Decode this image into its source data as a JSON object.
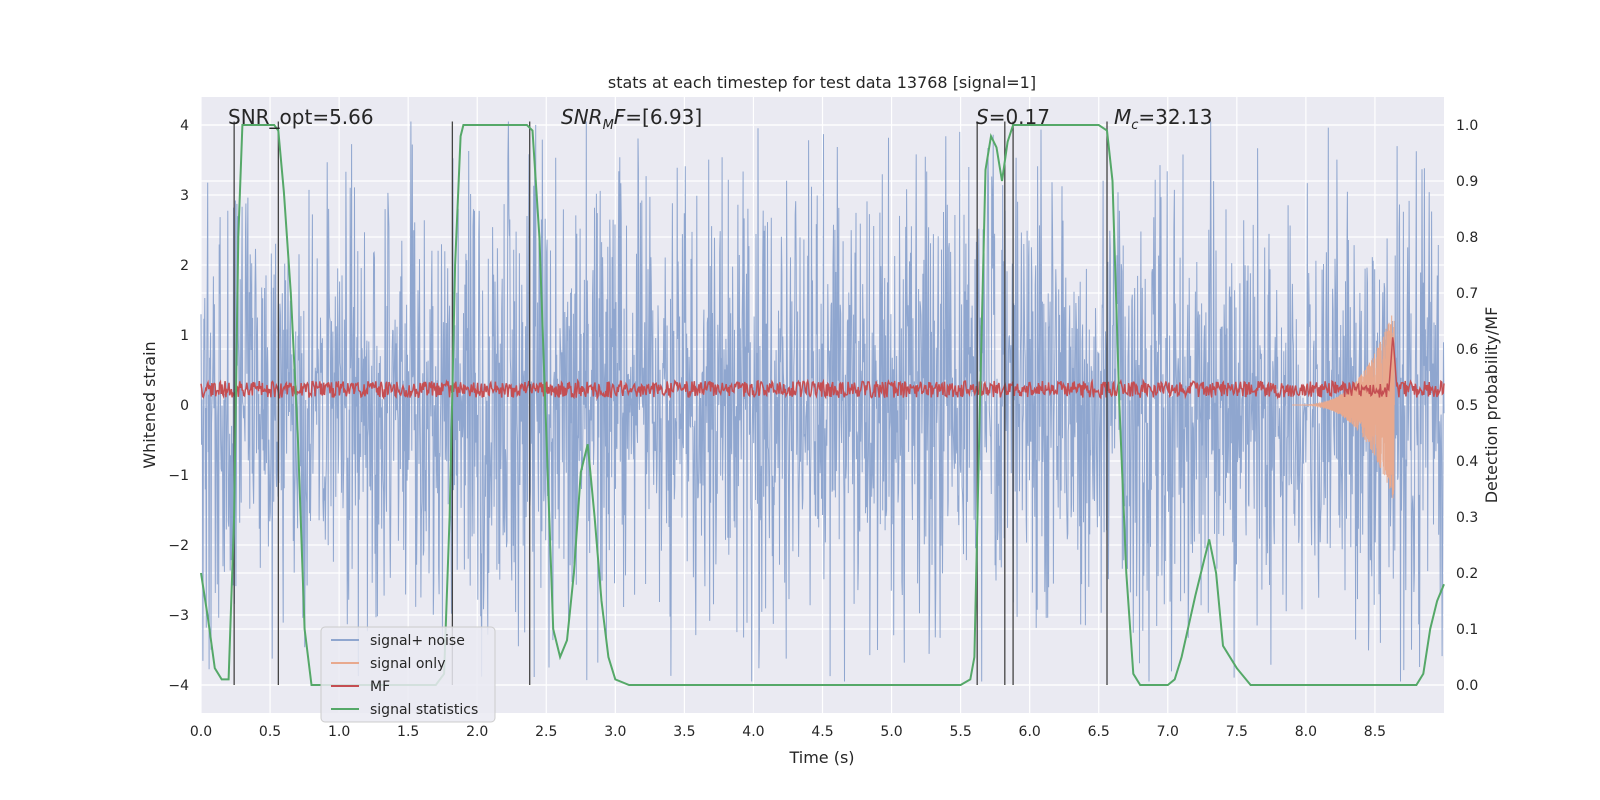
{
  "chart_data": {
    "type": "line",
    "title": "stats at each timestep for test data 13768 [signal=1]",
    "xlabel": "Time (s)",
    "ylabel": "Whitened strain",
    "y2label": "Detection probability/MF",
    "xlim": [
      0,
      9.0
    ],
    "ylim": [
      -4.4,
      4.4
    ],
    "y2lim": [
      -0.05,
      1.05
    ],
    "xticks": [
      0.0,
      0.5,
      1.0,
      1.5,
      2.0,
      2.5,
      3.0,
      3.5,
      4.0,
      4.5,
      5.0,
      5.5,
      6.0,
      6.5,
      7.0,
      7.5,
      8.0,
      8.5
    ],
    "xtick_labels": [
      "0.0",
      "0.5",
      "1.0",
      "1.5",
      "2.0",
      "2.5",
      "3.0",
      "3.5",
      "4.0",
      "4.5",
      "5.0",
      "5.5",
      "6.0",
      "6.5",
      "7.0",
      "7.5",
      "8.0",
      "8.5"
    ],
    "yticks": [
      -4,
      -3,
      -2,
      -1,
      0,
      1,
      2,
      3,
      4
    ],
    "ytick_labels": [
      "−4",
      "−3",
      "−2",
      "−1",
      "0",
      "1",
      "2",
      "3",
      "4"
    ],
    "y2ticks": [
      0.0,
      0.1,
      0.2,
      0.3,
      0.4,
      0.5,
      0.6,
      0.7,
      0.8,
      0.9,
      1.0
    ],
    "y2tick_labels": [
      "0.0",
      "0.1",
      "0.2",
      "0.3",
      "0.4",
      "0.5",
      "0.6",
      "0.7",
      "0.8",
      "0.9",
      "1.0"
    ],
    "grid": true,
    "annotations": [
      {
        "text": "SNR_opt=5.66",
        "x": 0.2
      },
      {
        "text": "SNR_MF=[6.93]",
        "x": 2.6
      },
      {
        "text": "S=0.17",
        "x": 5.62
      },
      {
        "text": "M_c=32.13",
        "x": 6.62
      }
    ],
    "vertical_lines": [
      0.24,
      0.56,
      1.82,
      2.38,
      5.62,
      5.82,
      5.88,
      6.56
    ],
    "legend": {
      "position": "lower-left",
      "entries": [
        {
          "label": "signal+ noise",
          "color": "#8fa6cf"
        },
        {
          "label": "signal only",
          "color": "#e8a98e"
        },
        {
          "label": "MF",
          "color": "#c44e52"
        },
        {
          "label": "signal statistics",
          "color": "#55a868"
        }
      ]
    },
    "series": [
      {
        "name": "signal+ noise",
        "axis": "left",
        "color": "#8fa6cf",
        "envelope": {
          "x_start": 0.0,
          "x_end": 9.0,
          "typical_amplitude": 1.6,
          "peak_max": 4.05,
          "peak_min": -3.95
        }
      },
      {
        "name": "signal only",
        "axis": "left",
        "color": "#e8a98e",
        "chirp": {
          "x_start": 7.9,
          "x_end": 8.64,
          "peak_amplitude": 1.4
        }
      },
      {
        "name": "MF",
        "axis": "left",
        "color": "#c44e52",
        "baseline": 0.2,
        "noise_amplitude": 0.15,
        "peak": {
          "x": 8.63,
          "value": 1.0
        }
      },
      {
        "name": "signal statistics",
        "axis": "right",
        "color": "#55a868",
        "x": [
          0.0,
          0.05,
          0.1,
          0.15,
          0.2,
          0.24,
          0.27,
          0.3,
          0.35,
          0.4,
          0.45,
          0.5,
          0.53,
          0.56,
          0.6,
          0.65,
          0.7,
          0.75,
          0.8,
          0.9,
          1.0,
          1.2,
          1.4,
          1.6,
          1.7,
          1.76,
          1.8,
          1.84,
          1.88,
          1.9,
          2.0,
          2.2,
          2.3,
          2.36,
          2.4,
          2.45,
          2.5,
          2.55,
          2.6,
          2.65,
          2.7,
          2.75,
          2.8,
          2.85,
          2.9,
          2.95,
          3.0,
          3.1,
          3.5,
          4.0,
          4.5,
          5.0,
          5.5,
          5.57,
          5.6,
          5.64,
          5.68,
          5.72,
          5.76,
          5.8,
          5.84,
          5.88,
          5.95,
          6.0,
          6.1,
          6.3,
          6.5,
          6.56,
          6.6,
          6.65,
          6.7,
          6.75,
          6.8,
          6.9,
          7.0,
          7.05,
          7.1,
          7.2,
          7.3,
          7.35,
          7.4,
          7.5,
          7.6,
          8.0,
          8.5,
          8.8,
          8.85,
          8.9,
          8.95,
          9.0
        ],
        "values": [
          0.2,
          0.12,
          0.03,
          0.01,
          0.01,
          0.3,
          0.8,
          1.0,
          1.0,
          1.0,
          1.0,
          1.0,
          1.0,
          0.99,
          0.88,
          0.7,
          0.45,
          0.1,
          0.0,
          0.0,
          0.0,
          0.0,
          0.0,
          0.0,
          0.0,
          0.02,
          0.3,
          0.75,
          0.98,
          1.0,
          1.0,
          1.0,
          1.0,
          1.0,
          0.99,
          0.8,
          0.45,
          0.1,
          0.05,
          0.08,
          0.2,
          0.38,
          0.43,
          0.3,
          0.15,
          0.05,
          0.01,
          0.0,
          0.0,
          0.0,
          0.0,
          0.0,
          0.0,
          0.01,
          0.05,
          0.5,
          0.92,
          0.98,
          0.96,
          0.9,
          0.97,
          1.0,
          1.0,
          1.0,
          1.0,
          1.0,
          1.0,
          0.99,
          0.9,
          0.5,
          0.2,
          0.02,
          0.0,
          0.0,
          0.0,
          0.01,
          0.05,
          0.16,
          0.26,
          0.2,
          0.07,
          0.03,
          0.0,
          0.0,
          0.0,
          0.0,
          0.02,
          0.1,
          0.15,
          0.18
        ]
      }
    ]
  }
}
